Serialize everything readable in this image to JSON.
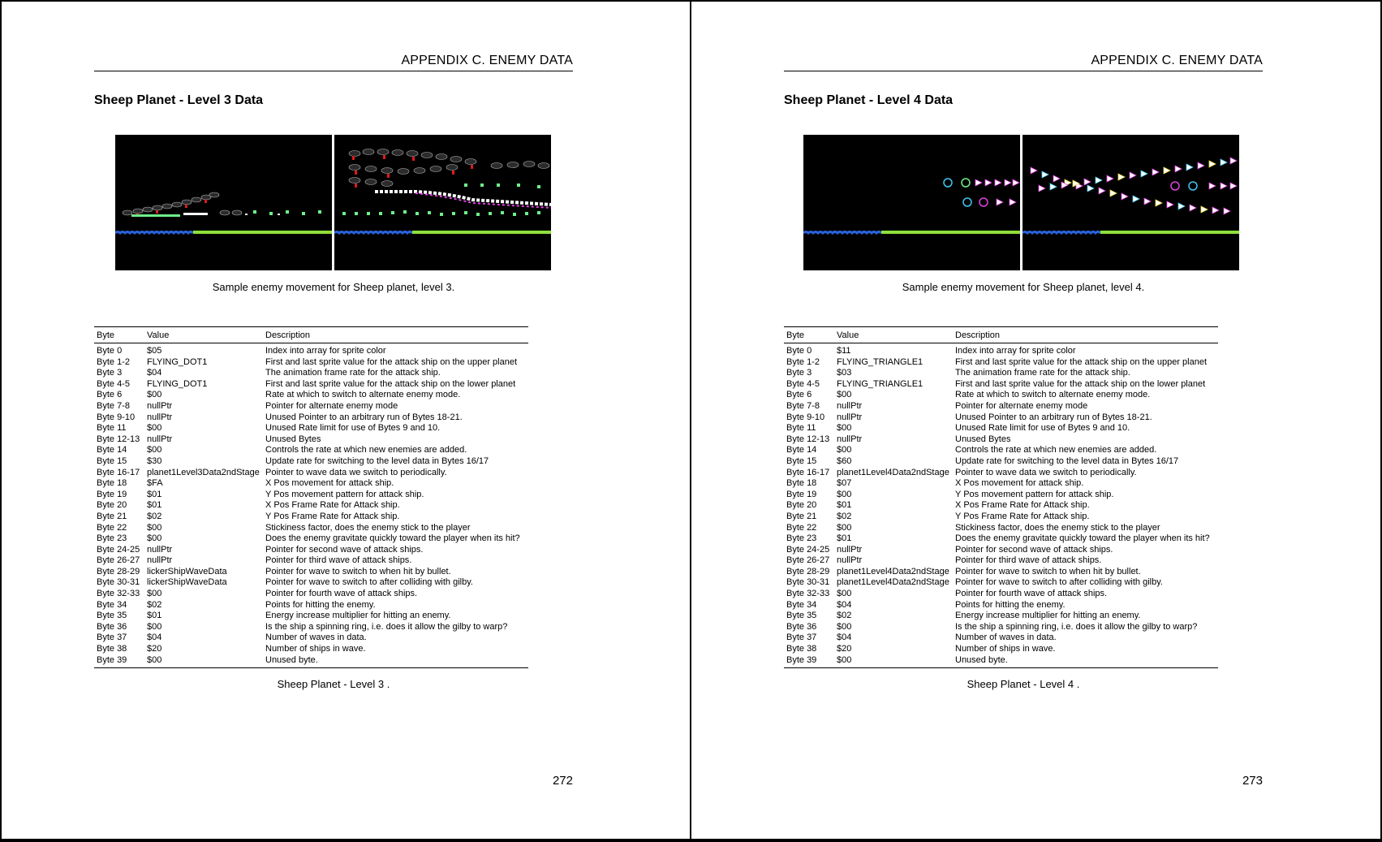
{
  "left_page": {
    "running_head": "APPENDIX C.  ENEMY DATA",
    "section_title": "Sheep Planet - Level 3 Data",
    "figure_caption": "Sample enemy movement for Sheep planet, level 3.",
    "table_headers": [
      "Byte",
      "Value",
      "Description"
    ],
    "rows": [
      [
        "Byte 0",
        "$05",
        "Index into array for sprite color"
      ],
      [
        "Byte 1-2",
        "FLYING_DOT1",
        "First and last sprite value for the attack ship on the upper planet"
      ],
      [
        "Byte 3",
        "$04",
        "The animation frame rate for the attack ship."
      ],
      [
        "Byte 4-5",
        "FLYING_DOT1",
        "First and last sprite value for the attack ship on the lower planet"
      ],
      [
        "Byte 6",
        "$00",
        "Rate at which to switch to alternate enemy mode."
      ],
      [
        "Byte 7-8",
        "nullPtr",
        "Pointer for alternate enemy mode"
      ],
      [
        "Byte 9-10",
        "nullPtr",
        "Unused Pointer to an arbitrary run of Bytes 18-21."
      ],
      [
        "Byte 11",
        "$00",
        "Unused Rate limit for use of Bytes 9 and 10."
      ],
      [
        "Byte 12-13",
        "nullPtr",
        "Unused Bytes"
      ],
      [
        "Byte 14",
        "$00",
        "Controls the rate at which new enemies are added."
      ],
      [
        "Byte 15",
        "$30",
        "Update rate for switching to the level data in Bytes 16/17"
      ],
      [
        "Byte 16-17",
        "planet1Level3Data2ndStage",
        "Pointer to wave data we switch to periodically."
      ],
      [
        "Byte 18",
        "$FA",
        "X Pos movement for attack ship."
      ],
      [
        "Byte 19",
        "$01",
        "Y Pos movement pattern for attack ship."
      ],
      [
        "Byte 20",
        "$01",
        "X Pos Frame Rate for Attack ship."
      ],
      [
        "Byte 21",
        "$02",
        "Y Pos Frame Rate for Attack ship."
      ],
      [
        "Byte 22",
        "$00",
        "Stickiness factor, does the enemy stick to the player"
      ],
      [
        "Byte 23",
        "$00",
        "Does the enemy gravitate quickly toward the player when its hit?"
      ],
      [
        "Byte 24-25",
        "nullPtr",
        "Pointer for second wave of attack ships."
      ],
      [
        "Byte 26-27",
        "nullPtr",
        "Pointer for third wave of attack ships."
      ],
      [
        "Byte 28-29",
        "lickerShipWaveData",
        "Pointer for wave to switch to when hit by bullet."
      ],
      [
        "Byte 30-31",
        "lickerShipWaveData",
        "Pointer for wave to switch to after colliding with gilby."
      ],
      [
        "Byte 32-33",
        "$00",
        "Pointer for fourth wave of attack ships."
      ],
      [
        "Byte 34",
        "$02",
        "Points for hitting the enemy."
      ],
      [
        "Byte 35",
        "$01",
        "Energy increase multiplier for hitting an enemy."
      ],
      [
        "Byte 36",
        "$00",
        "Is the ship a spinning ring, i.e. does it allow the gilby to warp?"
      ],
      [
        "Byte 37",
        "$04",
        "Number of waves in data."
      ],
      [
        "Byte 38",
        "$20",
        "Number of ships in wave."
      ],
      [
        "Byte 39",
        "$00",
        "Unused byte."
      ]
    ],
    "table_caption": "Sheep Planet - Level 3 .",
    "page_number": "272"
  },
  "right_page": {
    "running_head": "APPENDIX C.  ENEMY DATA",
    "section_title": "Sheep Planet - Level 4 Data",
    "figure_caption": "Sample enemy movement for Sheep planet, level 4.",
    "table_headers": [
      "Byte",
      "Value",
      "Description"
    ],
    "rows": [
      [
        "Byte 0",
        "$11",
        "Index into array for sprite color"
      ],
      [
        "Byte 1-2",
        "FLYING_TRIANGLE1",
        "First and last sprite value for the attack ship on the upper planet"
      ],
      [
        "Byte 3",
        "$03",
        "The animation frame rate for the attack ship."
      ],
      [
        "Byte 4-5",
        "FLYING_TRIANGLE1",
        "First and last sprite value for the attack ship on the lower planet"
      ],
      [
        "Byte 6",
        "$00",
        "Rate at which to switch to alternate enemy mode."
      ],
      [
        "Byte 7-8",
        "nullPtr",
        "Pointer for alternate enemy mode"
      ],
      [
        "Byte 9-10",
        "nullPtr",
        "Unused Pointer to an arbitrary run of Bytes 18-21."
      ],
      [
        "Byte 11",
        "$00",
        "Unused Rate limit for use of Bytes 9 and 10."
      ],
      [
        "Byte 12-13",
        "nullPtr",
        "Unused Bytes"
      ],
      [
        "Byte 14",
        "$00",
        "Controls the rate at which new enemies are added."
      ],
      [
        "Byte 15",
        "$60",
        "Update rate for switching to the level data in Bytes 16/17"
      ],
      [
        "Byte 16-17",
        "planet1Level4Data2ndStage",
        "Pointer to wave data we switch to periodically."
      ],
      [
        "Byte 18",
        "$07",
        "X Pos movement for attack ship."
      ],
      [
        "Byte 19",
        "$00",
        "Y Pos movement pattern for attack ship."
      ],
      [
        "Byte 20",
        "$01",
        "X Pos Frame Rate for Attack ship."
      ],
      [
        "Byte 21",
        "$02",
        "Y Pos Frame Rate for Attack ship."
      ],
      [
        "Byte 22",
        "$00",
        "Stickiness factor, does the enemy stick to the player"
      ],
      [
        "Byte 23",
        "$01",
        "Does the enemy gravitate quickly toward the player when its hit?"
      ],
      [
        "Byte 24-25",
        "nullPtr",
        "Pointer for second wave of attack ships."
      ],
      [
        "Byte 26-27",
        "nullPtr",
        "Pointer for third wave of attack ships."
      ],
      [
        "Byte 28-29",
        "planet1Level4Data2ndStage",
        "Pointer for wave to switch to when hit by bullet."
      ],
      [
        "Byte 30-31",
        "planet1Level4Data2ndStage",
        "Pointer for wave to switch to after colliding with gilby."
      ],
      [
        "Byte 32-33",
        "$00",
        "Pointer for fourth wave of attack ships."
      ],
      [
        "Byte 34",
        "$04",
        "Points for hitting the enemy."
      ],
      [
        "Byte 35",
        "$02",
        "Energy increase multiplier for hitting an enemy."
      ],
      [
        "Byte 36",
        "$00",
        "Is the ship a spinning ring, i.e. does it allow the gilby to warp?"
      ],
      [
        "Byte 37",
        "$04",
        "Number of waves in data."
      ],
      [
        "Byte 38",
        "$20",
        "Number of ships in wave."
      ],
      [
        "Byte 39",
        "$00",
        "Unused byte."
      ]
    ],
    "table_caption": "Sheep Planet - Level 4 .",
    "page_number": "273"
  },
  "colors": {
    "screen_bg": "#000000",
    "water": "#2a62d8",
    "grass": "#8ee03a",
    "ship_dark": "#2b2b2b",
    "ship_red": "#e01818",
    "dot_green": "#6ef08a",
    "tri_magenta": "#e040e0",
    "tri_cyan": "#40c8f0",
    "tri_yellow": "#f0e040"
  }
}
